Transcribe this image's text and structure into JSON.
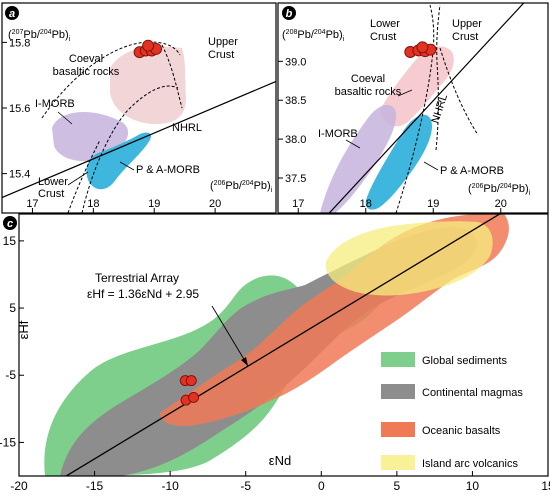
{
  "colors": {
    "morb": "#c6b3dc",
    "pa_morb": "#35b2db",
    "coeval": "#f6c7cc",
    "upper_crust": "#f1d0d3",
    "samples": "#e23222",
    "global_sediments": "#7fcf8c",
    "continental_magmas": "#8d8d8d",
    "oceanic_basalts": "#f07a56",
    "island_arc": "#f6ee7e"
  },
  "chart_data": [
    {
      "panel": "a",
      "type": "scatter",
      "title": "",
      "xlabel": "(206Pb/204Pb)i",
      "ylabel": "(207Pb/204Pb)i",
      "xlim": [
        16.5,
        21
      ],
      "ylim": [
        15.28,
        15.92
      ],
      "xticks": [
        "17",
        "18",
        "19",
        "20"
      ],
      "yticks": [
        "15.4",
        "15.6",
        "15.8"
      ],
      "labels": {
        "coeval": "Coeval\nbasaltic rocks",
        "upper": "Upper\nCrust",
        "imorb": "I-MORB",
        "pamorb": "P & A-MORB",
        "nhrl": "NHRL",
        "lower": "Lower\nCrust"
      },
      "samples": [
        {
          "x": 18.76,
          "y": 15.77
        },
        {
          "x": 18.86,
          "y": 15.775
        },
        {
          "x": 18.96,
          "y": 15.775
        },
        {
          "x": 19.03,
          "y": 15.78
        },
        {
          "x": 18.9,
          "y": 15.79
        }
      ],
      "nhrl": [
        [
          16.5,
          15.327
        ],
        [
          21,
          15.681
        ]
      ]
    },
    {
      "panel": "b",
      "type": "scatter",
      "title": "",
      "xlabel": "(206Pb/204Pb)i",
      "ylabel": "(208Pb/204Pb)i",
      "xlim": [
        16.7,
        20.7
      ],
      "ylim": [
        37.05,
        39.75
      ],
      "xticks": [
        "17",
        "18",
        "19",
        "20"
      ],
      "yticks": [
        "37.5",
        "38.0",
        "38.5",
        "39.0"
      ],
      "labels": {
        "lower": "Lower\nCrust",
        "upper": "Upper\nCrust",
        "coeval": "Coeval\nbasaltic rocks",
        "imorb": "I-MORB",
        "nhrl": "NHRL",
        "pamorb": "P & A-MORB"
      },
      "samples": [
        {
          "x": 18.66,
          "y": 39.12
        },
        {
          "x": 18.78,
          "y": 39.14
        },
        {
          "x": 18.88,
          "y": 39.13
        },
        {
          "x": 18.96,
          "y": 39.15
        },
        {
          "x": 18.84,
          "y": 39.18
        }
      ],
      "nhrl": [
        [
          17.3,
          36.9
        ],
        [
          20.5,
          39.9
        ]
      ]
    },
    {
      "panel": "c",
      "type": "scatter",
      "title": "",
      "xlabel": "εNd",
      "ylabel": "εHf",
      "xlim": [
        -20,
        15
      ],
      "ylim": [
        -20,
        19
      ],
      "xticks": [
        "-20",
        "-15",
        "-10",
        "-5",
        "0",
        "5",
        "10",
        "15"
      ],
      "yticks": [
        "-15",
        "-5",
        "5",
        "15"
      ],
      "annotation": {
        "title": "Terrestrial Array",
        "equation": "εHf = 1.36εNd + 2.95"
      },
      "array_line": {
        "slope": 1.36,
        "intercept": 2.95
      },
      "legend": [
        {
          "label": "Global sediments",
          "color_key": "global_sediments"
        },
        {
          "label": "Continental magmas",
          "color_key": "continental_magmas"
        },
        {
          "label": "Oceanic basalts",
          "color_key": "oceanic_basalts"
        },
        {
          "label": "Island arc volcanics",
          "color_key": "island_arc"
        }
      ],
      "samples": [
        {
          "x": -9.0,
          "y": -5.8
        },
        {
          "x": -8.6,
          "y": -5.8
        },
        {
          "x": -8.95,
          "y": -8.7
        },
        {
          "x": -8.45,
          "y": -8.3
        }
      ]
    }
  ]
}
